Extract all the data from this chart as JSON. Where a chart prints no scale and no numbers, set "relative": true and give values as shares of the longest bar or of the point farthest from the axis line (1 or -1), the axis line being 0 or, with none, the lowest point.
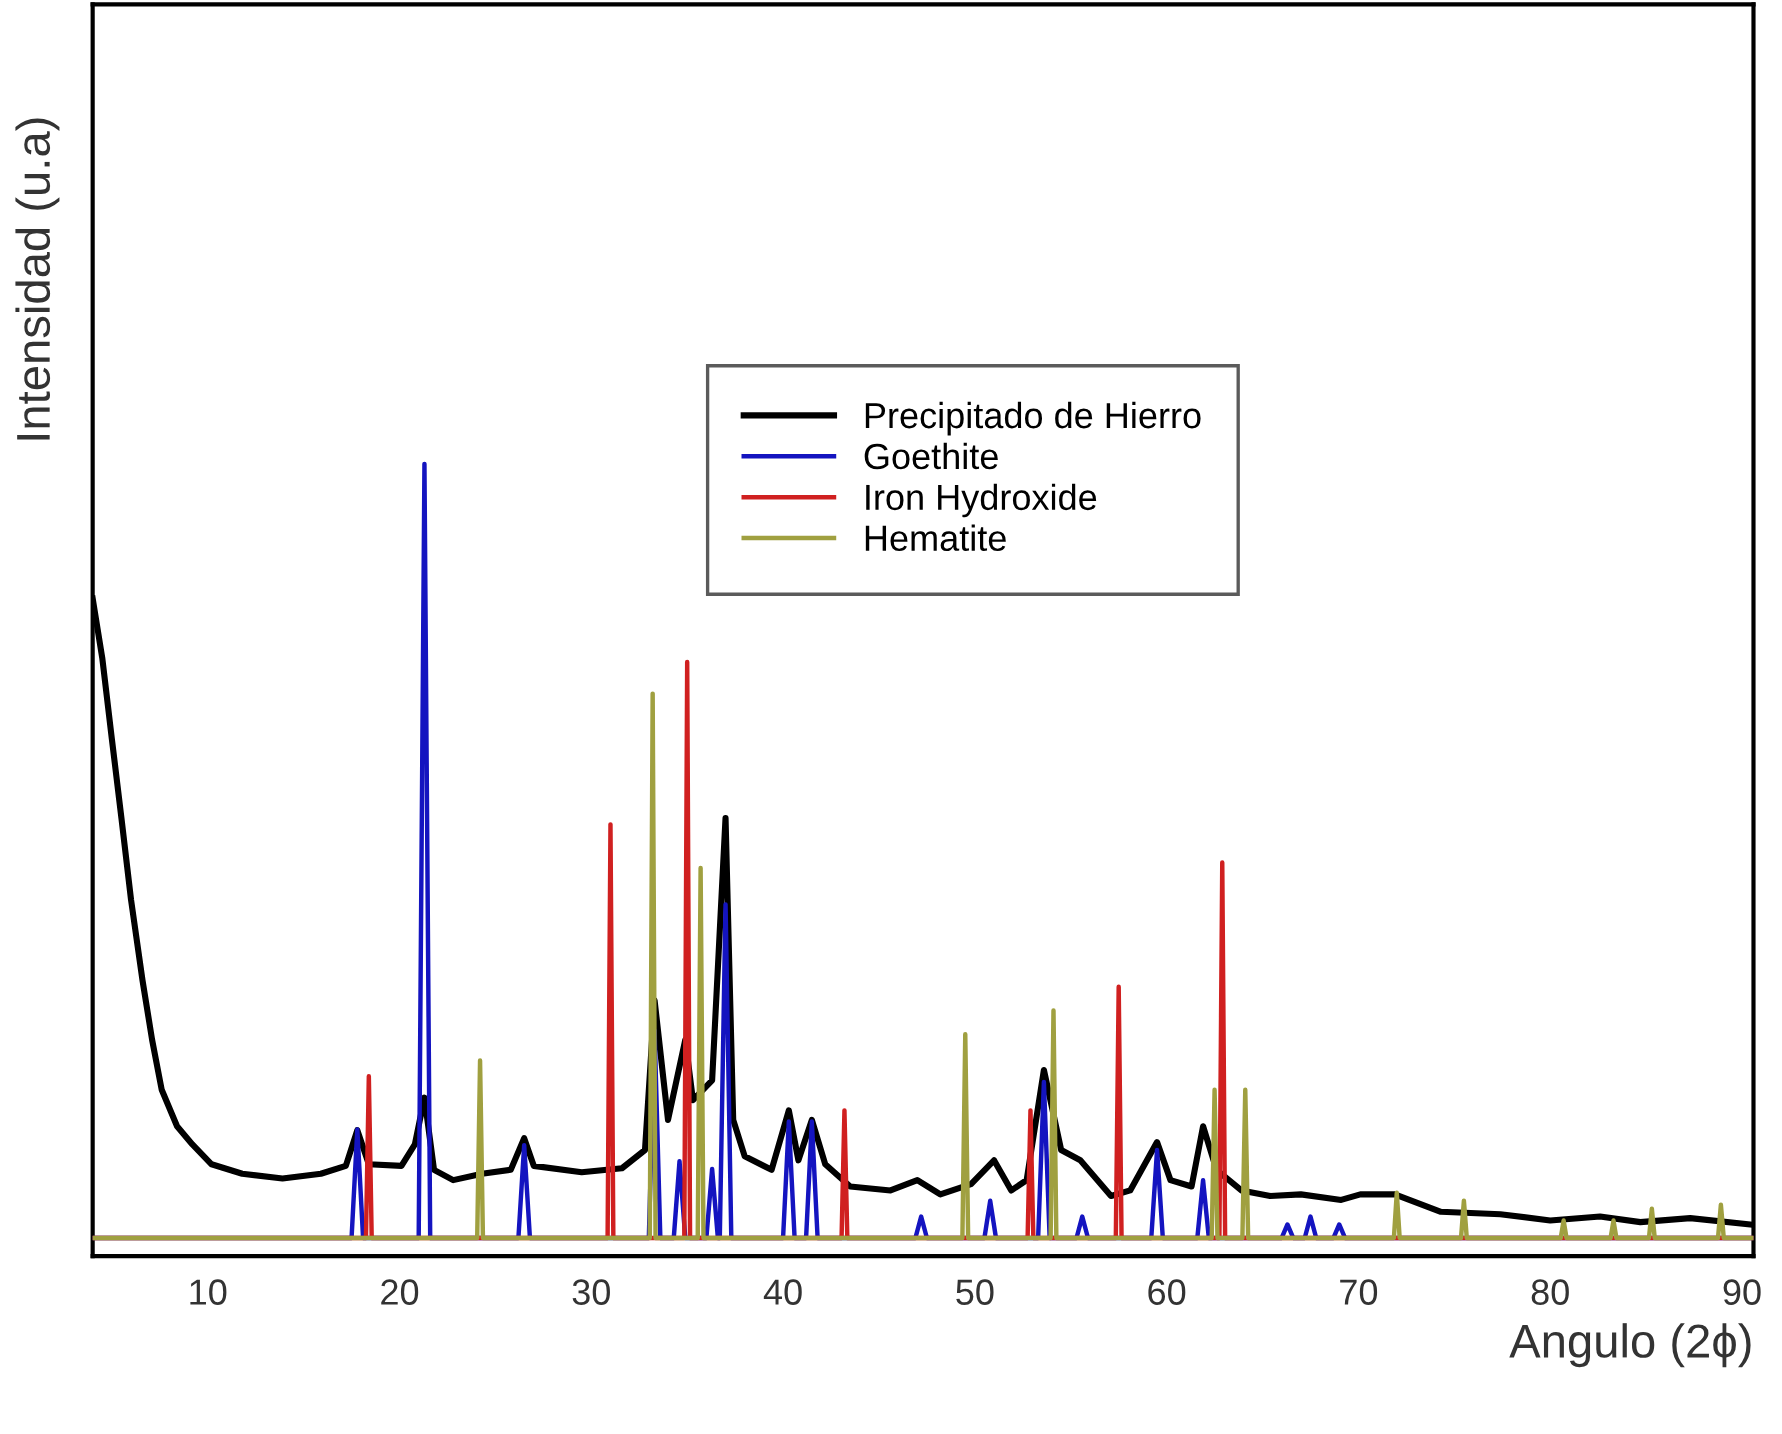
{
  "chart_data": {
    "type": "line",
    "relative": true,
    "xlabel": "Angulo (2ϕ)",
    "ylabel": "Intensidad (u.a)",
    "xlim": [
      4,
      90.6
    ],
    "xticks": [
      10,
      20,
      30,
      40,
      50,
      60,
      70,
      80,
      90
    ],
    "grid": false,
    "legend": "top",
    "marker": "none",
    "line_style": "solid",
    "series": [
      {
        "name": "Precipitado de Hierro",
        "color": "#000000",
        "x": [
          4.0,
          4.5,
          5.0,
          5.5,
          6.0,
          6.6,
          7.1,
          7.6,
          8.4,
          9.2,
          10.2,
          11.8,
          13.9,
          15.9,
          17.2,
          17.8,
          18.4,
          20.1,
          20.8,
          21.3,
          21.8,
          22.8,
          24.3,
          25.8,
          26.5,
          27.0,
          29.5,
          31.6,
          32.8,
          33.3,
          34.0,
          34.9,
          35.3,
          36.3,
          37.0,
          37.4,
          38.0,
          39.4,
          40.3,
          40.8,
          41.5,
          42.2,
          43.5,
          45.6,
          47.0,
          48.2,
          49.8,
          51.0,
          51.9,
          52.7,
          53.6,
          54.5,
          55.5,
          57.1,
          58.1,
          59.5,
          60.2,
          61.3,
          61.9,
          62.6,
          63.9,
          65.4,
          67.0,
          69.1,
          70.1,
          71.9,
          74.3,
          77.4,
          80.0,
          82.6,
          84.7,
          87.3,
          90.4
        ],
        "values": [
          0.83,
          0.755,
          0.653,
          0.553,
          0.45,
          0.348,
          0.273,
          0.21,
          0.164,
          0.141,
          0.116,
          0.104,
          0.098,
          0.104,
          0.114,
          0.159,
          0.116,
          0.114,
          0.141,
          0.2,
          0.109,
          0.096,
          0.104,
          0.109,
          0.149,
          0.114,
          0.106,
          0.111,
          0.134,
          0.323,
          0.172,
          0.273,
          0.197,
          0.222,
          0.553,
          0.172,
          0.126,
          0.109,
          0.184,
          0.121,
          0.172,
          0.116,
          0.088,
          0.083,
          0.096,
          0.078,
          0.091,
          0.121,
          0.083,
          0.096,
          0.235,
          0.134,
          0.121,
          0.076,
          0.083,
          0.144,
          0.096,
          0.088,
          0.164,
          0.109,
          0.083,
          0.076,
          0.078,
          0.071,
          0.078,
          0.078,
          0.056,
          0.053,
          0.045,
          0.05,
          0.043,
          0.048,
          0.04
        ]
      },
      {
        "name": "Goethite",
        "color": "#1414c0",
        "x": [
          4,
          17.5,
          17.8,
          18.1,
          21.0,
          21.3,
          21.6,
          26.2,
          26.5,
          26.8,
          33.0,
          33.3,
          33.6,
          34.3,
          34.6,
          34.9,
          36.0,
          36.3,
          36.6,
          36.7,
          37.0,
          37.3,
          40.0,
          40.3,
          40.6,
          41.2,
          41.5,
          41.8,
          46.9,
          47.2,
          47.5,
          50.5,
          50.8,
          51.1,
          53.3,
          53.6,
          53.9,
          55.3,
          55.6,
          55.9,
          59.2,
          59.5,
          59.8,
          61.6,
          61.9,
          62.2,
          66.0,
          66.3,
          66.6,
          67.2,
          67.5,
          67.8,
          68.7,
          69.0,
          69.3,
          90.6
        ],
        "values": [
          0.023,
          0.023,
          0.16,
          0.023,
          0.023,
          1.0,
          0.023,
          0.023,
          0.14,
          0.023,
          0.023,
          0.285,
          0.023,
          0.023,
          0.12,
          0.023,
          0.023,
          0.11,
          0.023,
          0.023,
          0.444,
          0.023,
          0.023,
          0.17,
          0.023,
          0.023,
          0.17,
          0.023,
          0.023,
          0.05,
          0.023,
          0.023,
          0.07,
          0.023,
          0.023,
          0.22,
          0.023,
          0.023,
          0.05,
          0.023,
          0.023,
          0.134,
          0.023,
          0.023,
          0.096,
          0.023,
          0.023,
          0.04,
          0.023,
          0.023,
          0.05,
          0.023,
          0.023,
          0.04,
          0.023,
          0.023
        ]
      },
      {
        "name": "Iron Hydroxide",
        "color": "#d02020",
        "x": [
          4,
          18.25,
          18.4,
          18.55,
          30.85,
          31.0,
          31.15,
          34.85,
          35.0,
          35.15,
          43.05,
          43.2,
          43.35,
          52.75,
          52.9,
          53.05,
          57.35,
          57.5,
          57.65,
          62.75,
          62.9,
          63.05,
          90.6
        ],
        "values": [
          0.023,
          0.023,
          0.227,
          0.023,
          0.023,
          0.545,
          0.023,
          0.023,
          0.75,
          0.023,
          0.023,
          0.184,
          0.023,
          0.023,
          0.184,
          0.023,
          0.023,
          0.34,
          0.023,
          0.023,
          0.497,
          0.023,
          0.023
        ]
      },
      {
        "name": "Hematite",
        "color": "#a0a040",
        "x": [
          4,
          24.05,
          24.2,
          24.35,
          33.05,
          33.2,
          33.35,
          35.55,
          35.7,
          35.85,
          49.35,
          49.5,
          49.65,
          53.95,
          54.1,
          54.25,
          62.35,
          62.5,
          62.65,
          63.95,
          64.1,
          64.25,
          71.85,
          72.0,
          72.15,
          75.35,
          75.5,
          75.65,
          80.55,
          80.7,
          80.85,
          83.15,
          83.3,
          83.45,
          85.15,
          85.3,
          85.45,
          88.75,
          88.9,
          89.05,
          90.6
        ],
        "values": [
          0.023,
          0.023,
          0.247,
          0.023,
          0.023,
          0.71,
          0.023,
          0.023,
          0.49,
          0.023,
          0.023,
          0.28,
          0.023,
          0.023,
          0.31,
          0.023,
          0.023,
          0.21,
          0.023,
          0.023,
          0.21,
          0.023,
          0.023,
          0.08,
          0.023,
          0.023,
          0.07,
          0.023,
          0.023,
          0.045,
          0.023,
          0.023,
          0.045,
          0.023,
          0.023,
          0.06,
          0.023,
          0.023,
          0.065,
          0.023,
          0.023
        ]
      }
    ]
  }
}
